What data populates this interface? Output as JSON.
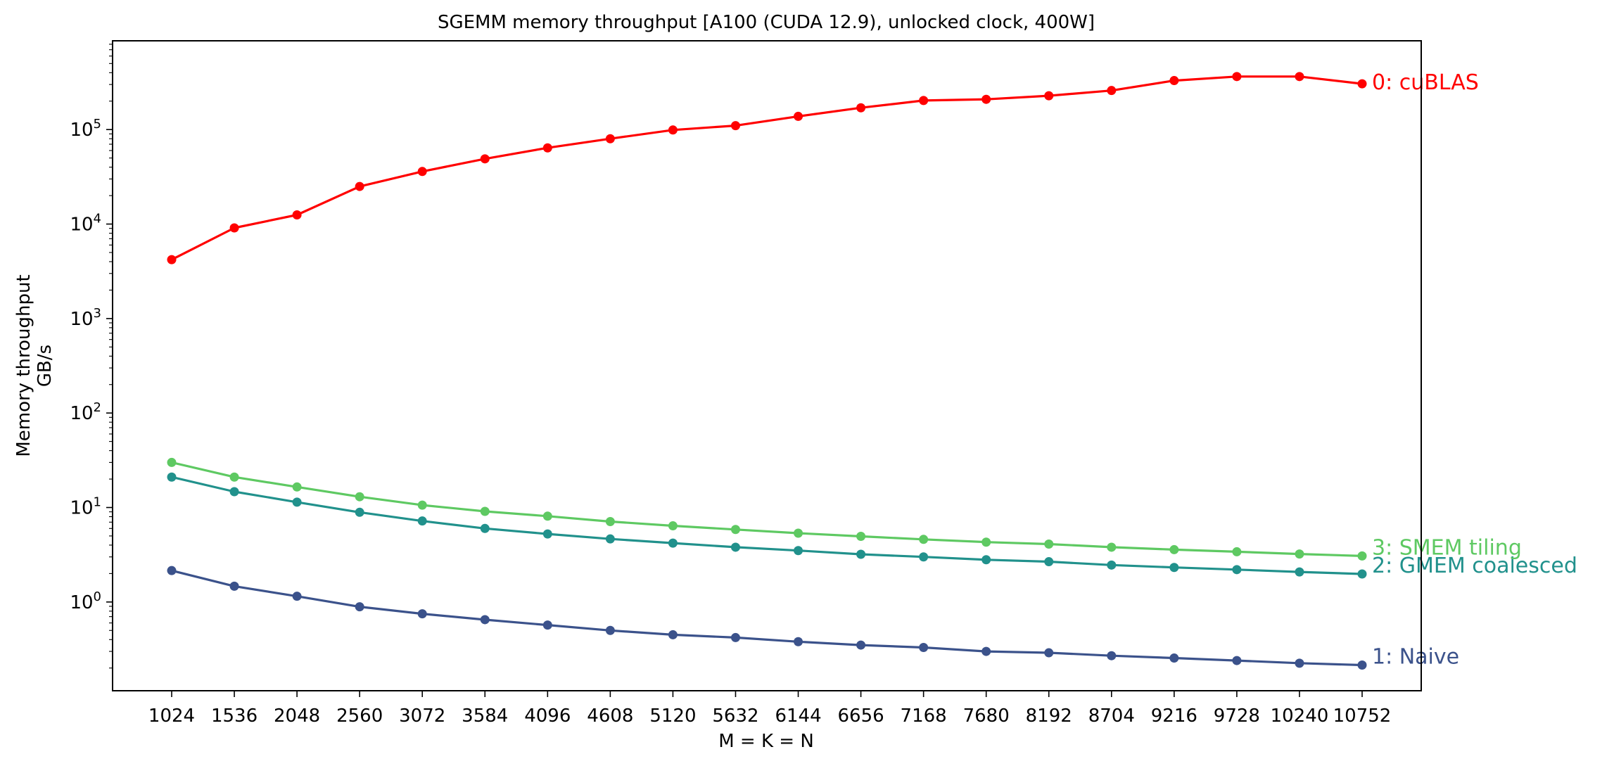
{
  "chart_data": {
    "type": "line",
    "title": "SGEMM memory throughput [A100 (CUDA 12.9), unlocked clock, 400W]",
    "xlabel": "M = K = N",
    "ylabel": [
      "Memory throughput",
      "GB/s"
    ],
    "yscale": "log",
    "ylim": [
      0.115,
      870000
    ],
    "grid": false,
    "legend": "inline labels at right end of each line",
    "x": [
      1024,
      1536,
      2048,
      2560,
      3072,
      3584,
      4096,
      4608,
      5120,
      5632,
      6144,
      6656,
      7168,
      7680,
      8192,
      8704,
      9216,
      9728,
      10240,
      10752
    ],
    "x_tick_labels": [
      "1024",
      "1536",
      "2048",
      "2560",
      "3072",
      "3584",
      "4096",
      "4608",
      "5120",
      "5632",
      "6144",
      "6656",
      "7168",
      "7680",
      "8192",
      "8704",
      "9216",
      "9728",
      "10240",
      "10752"
    ],
    "y_ticks": [
      {
        "value": 1,
        "base": "10",
        "exp": "0"
      },
      {
        "value": 10,
        "base": "10",
        "exp": "1"
      },
      {
        "value": 100,
        "base": "10",
        "exp": "2"
      },
      {
        "value": 1000,
        "base": "10",
        "exp": "3"
      },
      {
        "value": 10000,
        "base": "10",
        "exp": "4"
      },
      {
        "value": 100000,
        "base": "10",
        "exp": "5"
      }
    ],
    "series": [
      {
        "name": "0: cuBLAS",
        "color": "#ff0000",
        "values": [
          4200,
          9100,
          12500,
          25000,
          36000,
          49000,
          64000,
          80000,
          99000,
          110000,
          138000,
          170000,
          203000,
          209000,
          228000,
          259000,
          330000,
          364000,
          364000,
          305000
        ]
      },
      {
        "name": "1: Naive",
        "color": "#3b528b",
        "values": [
          2.15,
          1.47,
          1.15,
          0.89,
          0.75,
          0.65,
          0.57,
          0.5,
          0.45,
          0.42,
          0.38,
          0.35,
          0.33,
          0.3,
          0.29,
          0.27,
          0.255,
          0.24,
          0.225,
          0.215
        ]
      },
      {
        "name": "2: GMEM coalesced",
        "color": "#21918c",
        "values": [
          21,
          14.7,
          11.4,
          8.9,
          7.2,
          6.0,
          5.25,
          4.65,
          4.2,
          3.8,
          3.5,
          3.2,
          3.0,
          2.8,
          2.67,
          2.46,
          2.32,
          2.2,
          2.08,
          1.98
        ]
      },
      {
        "name": "3: SMEM tiling",
        "color": "#5ec962",
        "values": [
          30,
          21,
          16.5,
          13,
          10.6,
          9.1,
          8.1,
          7.1,
          6.4,
          5.85,
          5.35,
          4.95,
          4.6,
          4.3,
          4.1,
          3.8,
          3.58,
          3.4,
          3.22,
          3.07
        ]
      }
    ]
  }
}
